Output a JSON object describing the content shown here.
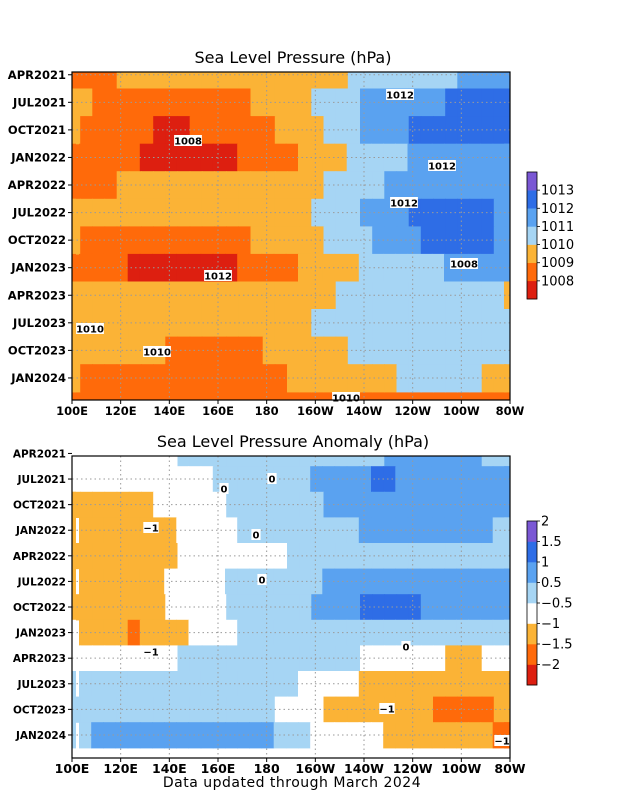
{
  "footer": "Data updated through March 2024",
  "chart_data": [
    {
      "type": "heatmap",
      "title": "Sea Level Pressure (hPa)",
      "x_ticks": [
        "100E",
        "120E",
        "140E",
        "160E",
        "180",
        "160W",
        "140W",
        "120W",
        "100W",
        "80W"
      ],
      "y_ticks": [
        "APR2021",
        "JUL2021",
        "OCT2021",
        "JAN2022",
        "APR2022",
        "JUL2022",
        "OCT2022",
        "JAN2023",
        "APR2023",
        "JUL2023",
        "OCT2023",
        "JAN2024"
      ],
      "grid": true,
      "colorbar": {
        "colors": [
          "#dd1f10",
          "#ff6a0a",
          "#fbb336",
          "#a6d5f4",
          "#5aa2f0",
          "#2e6de6",
          "#7a57d4"
        ],
        "labels": [
          "1008",
          "1009",
          "1010",
          "1011",
          "1012",
          "1013"
        ]
      },
      "contour_labels": [
        "1012",
        "1008",
        "1012",
        "1012",
        "1012",
        "1008",
        "1010",
        "1010",
        "1010"
      ],
      "bands": [
        {
          "values": [
            1009.4,
            1009.5,
            1009.6,
            1009.6,
            1009.8,
            1010.2,
            1010.6,
            1011.3,
            1011.5,
            1011.6
          ],
          "offset": 0
        },
        {
          "values": [
            1009.7,
            1009.3,
            1009.1,
            1009.0,
            1009.6,
            1010.4,
            1011.6,
            1012.2,
            1012.6,
            1012.7
          ],
          "offset": 0
        },
        {
          "values": [
            1009.6,
            1009.1,
            1008.4,
            1008.6,
            1009.4,
            1010.2,
            1011.5,
            1012.5,
            1013.2,
            1013.1
          ],
          "offset": 0
        },
        {
          "values": [
            1009.3,
            1008.7,
            1008.0,
            1008.3,
            1009.1,
            1010.0,
            1010.9,
            1011.7,
            1011.9,
            1012.0
          ],
          "offset": 1
        },
        {
          "values": [
            1009.2,
            1009.5,
            1009.7,
            1009.8,
            1010.0,
            1010.4,
            1011.2,
            1011.9,
            1011.8,
            1012.2
          ],
          "offset": 0
        },
        {
          "values": [
            1009.6,
            1009.6,
            1009.8,
            1009.9,
            1010.1,
            1010.5,
            1011.4,
            1012.5,
            1013.0,
            1012.4
          ],
          "offset": 0
        },
        {
          "values": [
            1009.6,
            1009.2,
            1009.0,
            1009.1,
            1009.6,
            1010.2,
            1011.2,
            1012.3,
            1013.1,
            1012.3
          ],
          "offset": 0
        },
        {
          "values": [
            1009.4,
            1008.5,
            1007.9,
            1008.2,
            1009.1,
            1010.0,
            1010.7,
            1011.4,
            1011.6,
            1011.6
          ],
          "offset": 1
        },
        {
          "values": [
            1009.6,
            1009.6,
            1009.9,
            1010.1,
            1010.2,
            1010.4,
            1010.6,
            1010.6,
            1010.6,
            1010.5
          ],
          "offset": 0
        },
        {
          "values": [
            1009.9,
            1010.4,
            1010.3,
            1010.2,
            1010.3,
            1010.5,
            1010.6,
            1011.1,
            1011.1,
            1010.7
          ],
          "offset": 0
        },
        {
          "values": [
            1010.4,
            1010.0,
            1009.5,
            1009.3,
            1009.5,
            1010.3,
            1010.6,
            1011.2,
            1011.2,
            1010.9
          ],
          "offset": 0
        },
        {
          "values": [
            1009.6,
            1009.3,
            1008.9,
            1008.9,
            1009.2,
            1009.8,
            1010.2,
            1010.6,
            1010.6,
            1010.4
          ],
          "offset": 0
        }
      ]
    },
    {
      "type": "heatmap",
      "title": "Sea Level Pressure Anomaly (hPa)",
      "x_ticks": [
        "100E",
        "120E",
        "140E",
        "160E",
        "180",
        "160W",
        "140W",
        "120W",
        "100W",
        "80W"
      ],
      "y_ticks": [
        "APR2021",
        "JUL2021",
        "OCT2021",
        "JAN2022",
        "APR2022",
        "JUL2022",
        "OCT2022",
        "JAN2023",
        "APR2023",
        "JUL2023",
        "OCT2023",
        "JAN2024"
      ],
      "grid": true,
      "colorbar": {
        "colors": [
          "#dd1f10",
          "#ff6a0a",
          "#fbb336",
          "#ffffff",
          "#a6d5f4",
          "#5aa2f0",
          "#2e6de6",
          "#7a57d4"
        ],
        "labels": [
          "−2",
          "−1.5",
          "−1",
          "−0.5",
          "0.5",
          "1",
          "1.5",
          "2"
        ]
      },
      "contour_labels": [
        "0",
        "0",
        "−1",
        "0",
        "0",
        "−1",
        "0",
        "−1",
        "−1"
      ],
      "bands": [
        {
          "values": [
            -0.3,
            -0.4,
            -0.3,
            0.0,
            0.1,
            0.0,
            0.2,
            0.3,
            0.3,
            0.2
          ],
          "offset": 0
        },
        {
          "values": [
            -0.6,
            -0.7,
            -0.5,
            -0.1,
            0.1,
            0.3,
            0.8,
            0.7,
            0.6,
            0.4
          ],
          "offset": 1
        },
        {
          "values": [
            -0.8,
            -0.9,
            -0.7,
            -0.3,
            0.0,
            0.2,
            0.4,
            0.6,
            0.6,
            0.3
          ],
          "offset": 0
        },
        {
          "values": [
            -0.9,
            -1.1,
            -0.8,
            -0.3,
            0.0,
            0.1,
            0.3,
            0.4,
            0.3,
            0.2
          ],
          "offset": 1
        },
        {
          "values": [
            -0.8,
            -1.2,
            -0.9,
            -0.4,
            -0.6,
            0.0,
            0.2,
            0.2,
            0.1,
            0.0
          ],
          "offset": 0
        },
        {
          "values": [
            -0.9,
            -1.0,
            -0.7,
            -0.2,
            0.0,
            0.2,
            0.7,
            0.7,
            0.5,
            0.3
          ],
          "offset": 1
        },
        {
          "values": [
            -0.9,
            -1.1,
            -0.8,
            -0.3,
            0.0,
            0.2,
            0.8,
            0.8,
            0.5,
            0.4
          ],
          "offset": 0
        },
        {
          "values": [
            -0.7,
            -1.3,
            -0.9,
            -0.3,
            -0.1,
            0.0,
            0.1,
            0.2,
            0.1,
            0.0
          ],
          "offset": 1
        },
        {
          "values": [
            -0.3,
            -0.4,
            -0.3,
            -0.1,
            0.0,
            -0.1,
            -0.2,
            -0.6,
            -0.8,
            -0.7
          ],
          "offset": 0
        },
        {
          "values": [
            -0.1,
            -0.2,
            -0.1,
            0.0,
            0.0,
            -0.6,
            -0.8,
            -0.9,
            -0.9,
            -0.8
          ],
          "offset": 1
        },
        {
          "values": [
            0.0,
            -0.1,
            0.0,
            0.0,
            -0.1,
            -0.7,
            -0.9,
            -1.1,
            -1.4,
            -1.2
          ],
          "offset": 0
        },
        {
          "values": [
            0.2,
            0.4,
            0.6,
            0.7,
            0.3,
            -0.4,
            -0.7,
            -1.0,
            -1.2,
            -1.3
          ],
          "offset": 1
        }
      ]
    }
  ]
}
